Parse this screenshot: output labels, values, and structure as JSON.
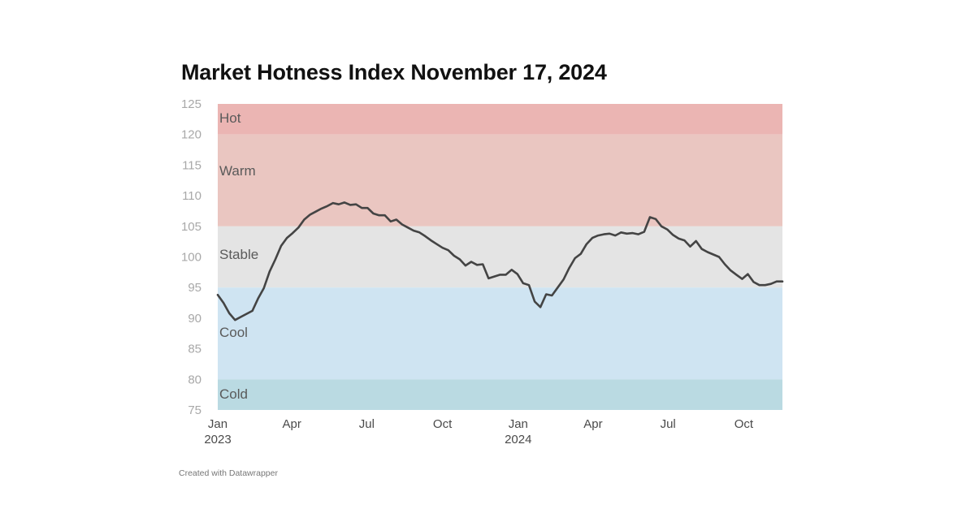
{
  "chart_data": {
    "type": "line",
    "title": "Market Hotness Index November 17, 2024",
    "xlabel": "",
    "ylabel": "",
    "ylim": [
      75,
      125
    ],
    "xlim": [
      "2023-01-01",
      "2024-11-17"
    ],
    "yticks": [
      "125",
      "120",
      "115",
      "110",
      "105",
      "100",
      "95",
      "90",
      "85",
      "80",
      "75"
    ],
    "xticks": [
      {
        "date": "2023-01-01",
        "label": "Jan",
        "sub": "2023"
      },
      {
        "date": "2023-04-01",
        "label": "Apr",
        "sub": ""
      },
      {
        "date": "2023-07-01",
        "label": "Jul",
        "sub": ""
      },
      {
        "date": "2023-10-01",
        "label": "Oct",
        "sub": ""
      },
      {
        "date": "2024-01-01",
        "label": "Jan",
        "sub": "2024"
      },
      {
        "date": "2024-04-01",
        "label": "Apr",
        "sub": ""
      },
      {
        "date": "2024-07-01",
        "label": "Jul",
        "sub": ""
      },
      {
        "date": "2024-10-01",
        "label": "Oct",
        "sub": ""
      }
    ],
    "bands": [
      {
        "label": "Hot",
        "from": 120,
        "to": 125,
        "color": "#ebb5b3"
      },
      {
        "label": "Warm",
        "from": 105,
        "to": 120,
        "color": "#eac6c1"
      },
      {
        "label": "Stable",
        "from": 95,
        "to": 105,
        "color": "#e4e4e4"
      },
      {
        "label": "Cool",
        "from": 80,
        "to": 95,
        "color": "#cfe4f2"
      },
      {
        "label": "Cold",
        "from": 75,
        "to": 80,
        "color": "#badae2"
      }
    ],
    "line_color": "#444444",
    "grid": false,
    "series": [
      {
        "name": "",
        "points": [
          [
            "2023-01-01",
            93.8
          ],
          [
            "2023-01-08",
            92.5
          ],
          [
            "2023-01-15",
            90.8
          ],
          [
            "2023-01-22",
            89.7
          ],
          [
            "2023-01-29",
            90.2
          ],
          [
            "2023-02-05",
            90.7
          ],
          [
            "2023-02-12",
            91.2
          ],
          [
            "2023-02-19",
            93.2
          ],
          [
            "2023-02-26",
            94.9
          ],
          [
            "2023-03-05",
            97.6
          ],
          [
            "2023-03-12",
            99.6
          ],
          [
            "2023-03-19",
            101.8
          ],
          [
            "2023-03-26",
            103.1
          ],
          [
            "2023-04-02",
            103.9
          ],
          [
            "2023-04-09",
            104.8
          ],
          [
            "2023-04-16",
            106.1
          ],
          [
            "2023-04-23",
            106.9
          ],
          [
            "2023-04-30",
            107.4
          ],
          [
            "2023-05-07",
            107.9
          ],
          [
            "2023-05-14",
            108.3
          ],
          [
            "2023-05-21",
            108.8
          ],
          [
            "2023-05-28",
            108.6
          ],
          [
            "2023-06-04",
            108.9
          ],
          [
            "2023-06-11",
            108.5
          ],
          [
            "2023-06-18",
            108.6
          ],
          [
            "2023-06-25",
            108.0
          ],
          [
            "2023-07-02",
            108.0
          ],
          [
            "2023-07-09",
            107.1
          ],
          [
            "2023-07-16",
            106.8
          ],
          [
            "2023-07-23",
            106.8
          ],
          [
            "2023-07-30",
            105.8
          ],
          [
            "2023-08-06",
            106.1
          ],
          [
            "2023-08-13",
            105.3
          ],
          [
            "2023-08-20",
            104.8
          ],
          [
            "2023-08-27",
            104.3
          ],
          [
            "2023-09-03",
            104.0
          ],
          [
            "2023-09-10",
            103.4
          ],
          [
            "2023-09-17",
            102.7
          ],
          [
            "2023-09-24",
            102.1
          ],
          [
            "2023-10-01",
            101.5
          ],
          [
            "2023-10-08",
            101.1
          ],
          [
            "2023-10-15",
            100.2
          ],
          [
            "2023-10-22",
            99.6
          ],
          [
            "2023-10-29",
            98.6
          ],
          [
            "2023-11-05",
            99.2
          ],
          [
            "2023-11-12",
            98.7
          ],
          [
            "2023-11-19",
            98.8
          ],
          [
            "2023-11-26",
            96.5
          ],
          [
            "2023-12-03",
            96.8
          ],
          [
            "2023-12-10",
            97.1
          ],
          [
            "2023-12-17",
            97.1
          ],
          [
            "2023-12-24",
            97.9
          ],
          [
            "2023-12-31",
            97.2
          ],
          [
            "2024-01-07",
            95.7
          ],
          [
            "2024-01-14",
            95.4
          ],
          [
            "2024-01-21",
            92.7
          ],
          [
            "2024-01-28",
            91.8
          ],
          [
            "2024-02-04",
            93.9
          ],
          [
            "2024-02-11",
            93.7
          ],
          [
            "2024-02-18",
            95.0
          ],
          [
            "2024-02-25",
            96.3
          ],
          [
            "2024-03-03",
            98.2
          ],
          [
            "2024-03-10",
            99.8
          ],
          [
            "2024-03-17",
            100.5
          ],
          [
            "2024-03-24",
            102.1
          ],
          [
            "2024-03-31",
            103.1
          ],
          [
            "2024-04-07",
            103.5
          ],
          [
            "2024-04-14",
            103.7
          ],
          [
            "2024-04-21",
            103.8
          ],
          [
            "2024-04-28",
            103.5
          ],
          [
            "2024-05-05",
            104.0
          ],
          [
            "2024-05-12",
            103.8
          ],
          [
            "2024-05-19",
            103.9
          ],
          [
            "2024-05-26",
            103.7
          ],
          [
            "2024-06-02",
            104.1
          ],
          [
            "2024-06-09",
            106.5
          ],
          [
            "2024-06-16",
            106.2
          ],
          [
            "2024-06-23",
            105.0
          ],
          [
            "2024-06-30",
            104.5
          ],
          [
            "2024-07-07",
            103.6
          ],
          [
            "2024-07-14",
            103.0
          ],
          [
            "2024-07-21",
            102.7
          ],
          [
            "2024-07-28",
            101.7
          ],
          [
            "2024-08-04",
            102.6
          ],
          [
            "2024-08-11",
            101.3
          ],
          [
            "2024-08-18",
            100.8
          ],
          [
            "2024-08-25",
            100.4
          ],
          [
            "2024-09-01",
            100.0
          ],
          [
            "2024-09-08",
            98.8
          ],
          [
            "2024-09-15",
            97.8
          ],
          [
            "2024-09-22",
            97.1
          ],
          [
            "2024-09-29",
            96.4
          ],
          [
            "2024-10-06",
            97.2
          ],
          [
            "2024-10-13",
            95.9
          ],
          [
            "2024-10-20",
            95.4
          ],
          [
            "2024-10-27",
            95.4
          ],
          [
            "2024-11-03",
            95.6
          ],
          [
            "2024-11-10",
            96.0
          ],
          [
            "2024-11-17",
            96.0
          ]
        ]
      }
    ]
  },
  "footer": {
    "credit": "Created with Datawrapper"
  }
}
